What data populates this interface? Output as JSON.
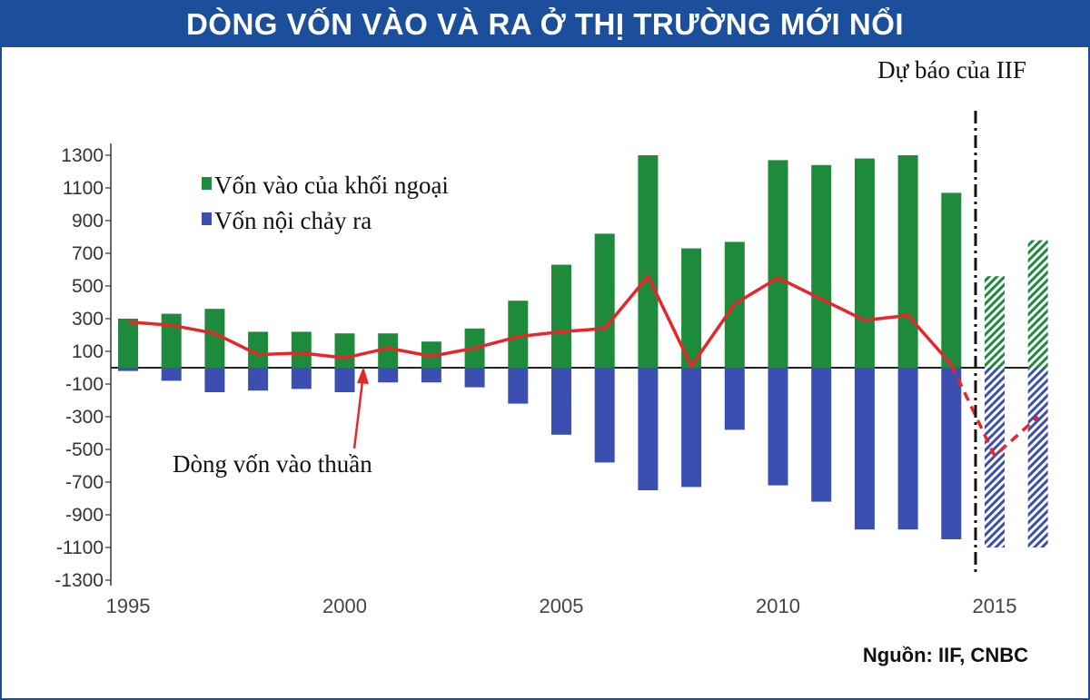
{
  "title": "DÒNG VỐN VÀO VÀ RA Ở THỊ TRƯỜNG MỚI NỔI",
  "forecast_label": "Dự báo của IIF",
  "source": "Nguồn: IIF, CNBC",
  "annotation": "Dòng vốn vào thuần",
  "colors": {
    "title_bg": "#1b4f9c",
    "inflow": "#1e8a3c",
    "outflow": "#3b4fb0",
    "net": "#e8262a"
  },
  "chart_data": {
    "type": "bar",
    "x": [
      1995,
      1996,
      1997,
      1998,
      1999,
      2000,
      2001,
      2002,
      2003,
      2004,
      2005,
      2006,
      2007,
      2008,
      2009,
      2010,
      2011,
      2012,
      2013,
      2014,
      2015,
      2016
    ],
    "x_tick_labels": [
      "1995",
      "2000",
      "2005",
      "2010",
      "2015"
    ],
    "y_ticks": [
      1300,
      1100,
      900,
      700,
      500,
      300,
      100,
      -100,
      -300,
      -500,
      -700,
      -900,
      -1100,
      -1300
    ],
    "y_tick_labels": [
      "1300",
      "1100",
      "900",
      "700",
      "500",
      "300",
      "100",
      "-100",
      "-300",
      "-500",
      "-700",
      "-900",
      "-1100",
      "-1300"
    ],
    "ylim": [
      -1350,
      1350
    ],
    "forecast_years": [
      2015,
      2016
    ],
    "legend_position": "top-left",
    "series": [
      {
        "name": "Vốn vào của khối ngoại",
        "kind": "bar",
        "values": [
          300,
          330,
          360,
          220,
          220,
          210,
          210,
          160,
          240,
          410,
          630,
          820,
          1300,
          730,
          770,
          1270,
          1240,
          1280,
          1300,
          1070,
          560,
          780
        ]
      },
      {
        "name": "Vốn nội chảy ra",
        "kind": "bar",
        "values": [
          -20,
          -80,
          -150,
          -140,
          -130,
          -150,
          -90,
          -90,
          -120,
          -220,
          -410,
          -580,
          -750,
          -730,
          -380,
          -720,
          -820,
          -990,
          -990,
          -1050,
          -1100,
          -1100
        ]
      },
      {
        "name": "Dòng vốn vào thuần",
        "kind": "line",
        "values": [
          280,
          260,
          210,
          80,
          90,
          60,
          120,
          70,
          120,
          190,
          220,
          240,
          560,
          10,
          390,
          550,
          420,
          290,
          320,
          20,
          -540,
          -300
        ]
      }
    ]
  }
}
